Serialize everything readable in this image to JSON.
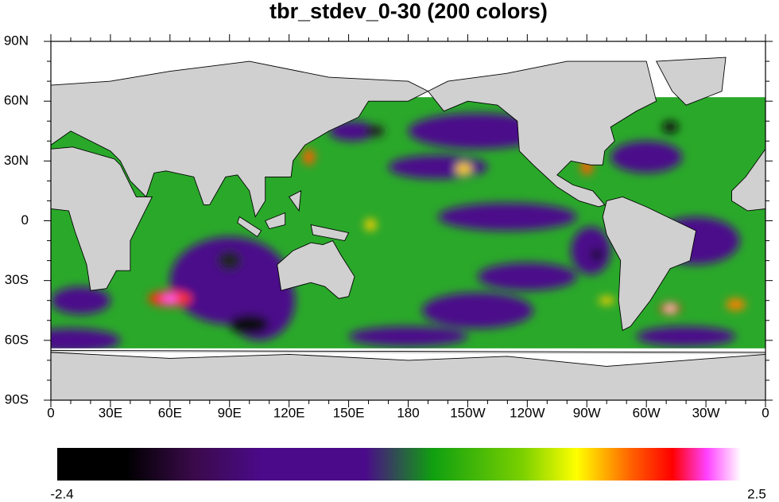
{
  "title": "tbr_stdev_0-30 (200 colors)",
  "lat_ticks": [
    "90N",
    "60N",
    "30N",
    "0",
    "30S",
    "60S",
    "90S"
  ],
  "lon_ticks": [
    "0",
    "30E",
    "60E",
    "90E",
    "120E",
    "150E",
    "180",
    "150W",
    "120W",
    "90W",
    "60W",
    "30W",
    "0"
  ],
  "colorbar": {
    "min": -2.4,
    "max": 2.5
  }
}
